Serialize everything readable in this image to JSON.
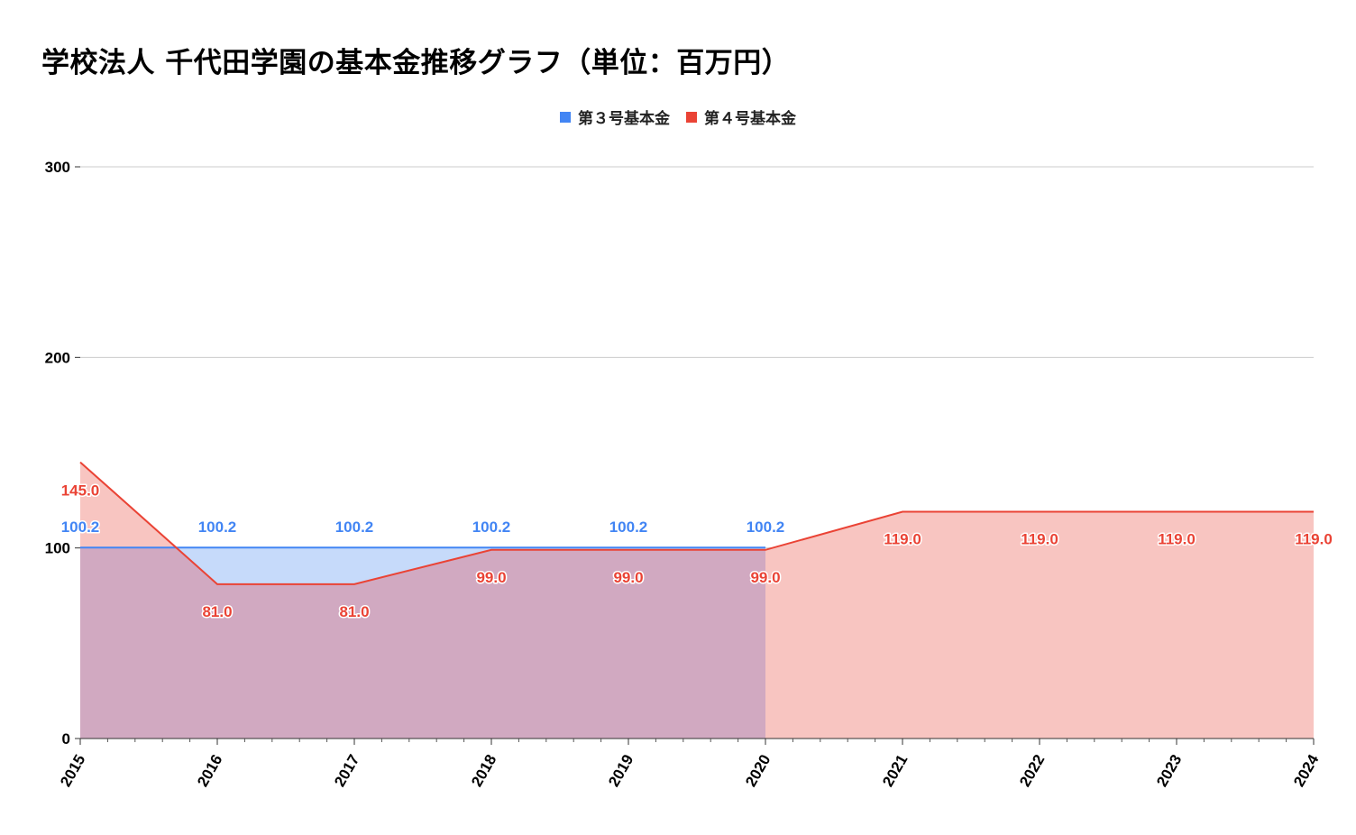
{
  "chart_data": {
    "type": "area",
    "title": "学校法人 千代田学園の基本金推移グラフ（単位：百万円）",
    "xlabel": "",
    "ylabel": "",
    "categories": [
      "2015",
      "2016",
      "2017",
      "2018",
      "2019",
      "2020",
      "2021",
      "2022",
      "2023",
      "2024"
    ],
    "series": [
      {
        "name": "第３号基本金",
        "color": "#4285f4",
        "fill": "#c6dafa",
        "values": [
          100.2,
          100.2,
          100.2,
          100.2,
          100.2,
          100.2,
          null,
          null,
          null,
          null
        ],
        "labels": [
          "100.2",
          "100.2",
          "100.2",
          "100.2",
          "100.2",
          "100.2",
          "",
          "",
          "",
          ""
        ]
      },
      {
        "name": "第４号基本金",
        "color": "#ea4335",
        "fill": "#f8c5c1",
        "values": [
          145.0,
          81.0,
          81.0,
          99.0,
          99.0,
          99.0,
          119.0,
          119.0,
          119.0,
          119.0
        ],
        "labels": [
          "145.0",
          "81.0",
          "81.0",
          "99.0",
          "99.0",
          "99.0",
          "119.0",
          "119.0",
          "119.0",
          "119.0"
        ]
      }
    ],
    "overlap_fill": "#d1a9c1",
    "ylim": [
      0,
      300
    ],
    "yticks": [
      "0",
      "100",
      "200",
      "300"
    ],
    "grid": true,
    "legend_position": "top-center"
  }
}
